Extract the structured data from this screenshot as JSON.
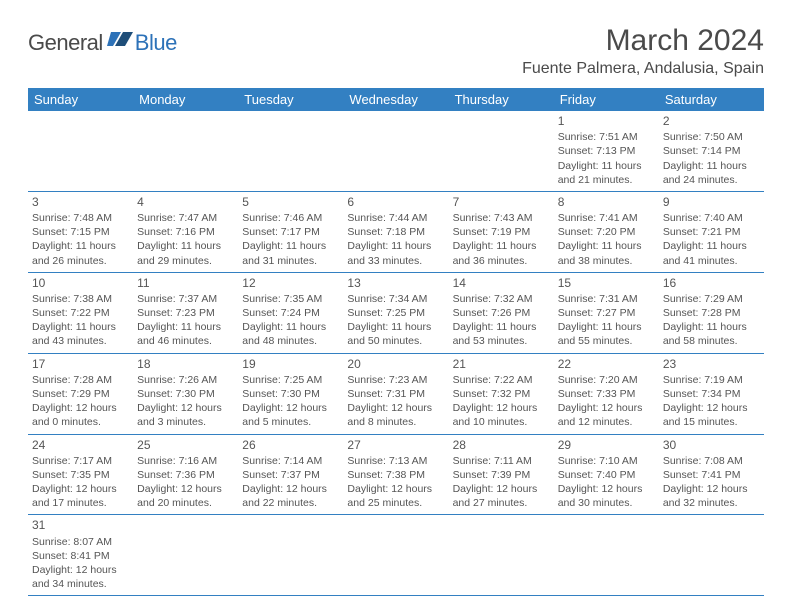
{
  "logo": {
    "part1": "General",
    "part2": "Blue"
  },
  "title": "March 2024",
  "location": "Fuente Palmera, Andalusia, Spain",
  "colors": {
    "headerBlue": "#3380c2",
    "text": "#555555",
    "titleText": "#4a4a4a",
    "logoBlue": "#2d72b8",
    "background": "#ffffff"
  },
  "weekdays": [
    "Sunday",
    "Monday",
    "Tuesday",
    "Wednesday",
    "Thursday",
    "Friday",
    "Saturday"
  ],
  "weeks": [
    [
      null,
      null,
      null,
      null,
      null,
      {
        "n": "1",
        "sr": "Sunrise: 7:51 AM",
        "ss": "Sunset: 7:13 PM",
        "d1": "Daylight: 11 hours",
        "d2": "and 21 minutes."
      },
      {
        "n": "2",
        "sr": "Sunrise: 7:50 AM",
        "ss": "Sunset: 7:14 PM",
        "d1": "Daylight: 11 hours",
        "d2": "and 24 minutes."
      }
    ],
    [
      {
        "n": "3",
        "sr": "Sunrise: 7:48 AM",
        "ss": "Sunset: 7:15 PM",
        "d1": "Daylight: 11 hours",
        "d2": "and 26 minutes."
      },
      {
        "n": "4",
        "sr": "Sunrise: 7:47 AM",
        "ss": "Sunset: 7:16 PM",
        "d1": "Daylight: 11 hours",
        "d2": "and 29 minutes."
      },
      {
        "n": "5",
        "sr": "Sunrise: 7:46 AM",
        "ss": "Sunset: 7:17 PM",
        "d1": "Daylight: 11 hours",
        "d2": "and 31 minutes."
      },
      {
        "n": "6",
        "sr": "Sunrise: 7:44 AM",
        "ss": "Sunset: 7:18 PM",
        "d1": "Daylight: 11 hours",
        "d2": "and 33 minutes."
      },
      {
        "n": "7",
        "sr": "Sunrise: 7:43 AM",
        "ss": "Sunset: 7:19 PM",
        "d1": "Daylight: 11 hours",
        "d2": "and 36 minutes."
      },
      {
        "n": "8",
        "sr": "Sunrise: 7:41 AM",
        "ss": "Sunset: 7:20 PM",
        "d1": "Daylight: 11 hours",
        "d2": "and 38 minutes."
      },
      {
        "n": "9",
        "sr": "Sunrise: 7:40 AM",
        "ss": "Sunset: 7:21 PM",
        "d1": "Daylight: 11 hours",
        "d2": "and 41 minutes."
      }
    ],
    [
      {
        "n": "10",
        "sr": "Sunrise: 7:38 AM",
        "ss": "Sunset: 7:22 PM",
        "d1": "Daylight: 11 hours",
        "d2": "and 43 minutes."
      },
      {
        "n": "11",
        "sr": "Sunrise: 7:37 AM",
        "ss": "Sunset: 7:23 PM",
        "d1": "Daylight: 11 hours",
        "d2": "and 46 minutes."
      },
      {
        "n": "12",
        "sr": "Sunrise: 7:35 AM",
        "ss": "Sunset: 7:24 PM",
        "d1": "Daylight: 11 hours",
        "d2": "and 48 minutes."
      },
      {
        "n": "13",
        "sr": "Sunrise: 7:34 AM",
        "ss": "Sunset: 7:25 PM",
        "d1": "Daylight: 11 hours",
        "d2": "and 50 minutes."
      },
      {
        "n": "14",
        "sr": "Sunrise: 7:32 AM",
        "ss": "Sunset: 7:26 PM",
        "d1": "Daylight: 11 hours",
        "d2": "and 53 minutes."
      },
      {
        "n": "15",
        "sr": "Sunrise: 7:31 AM",
        "ss": "Sunset: 7:27 PM",
        "d1": "Daylight: 11 hours",
        "d2": "and 55 minutes."
      },
      {
        "n": "16",
        "sr": "Sunrise: 7:29 AM",
        "ss": "Sunset: 7:28 PM",
        "d1": "Daylight: 11 hours",
        "d2": "and 58 minutes."
      }
    ],
    [
      {
        "n": "17",
        "sr": "Sunrise: 7:28 AM",
        "ss": "Sunset: 7:29 PM",
        "d1": "Daylight: 12 hours",
        "d2": "and 0 minutes."
      },
      {
        "n": "18",
        "sr": "Sunrise: 7:26 AM",
        "ss": "Sunset: 7:30 PM",
        "d1": "Daylight: 12 hours",
        "d2": "and 3 minutes."
      },
      {
        "n": "19",
        "sr": "Sunrise: 7:25 AM",
        "ss": "Sunset: 7:30 PM",
        "d1": "Daylight: 12 hours",
        "d2": "and 5 minutes."
      },
      {
        "n": "20",
        "sr": "Sunrise: 7:23 AM",
        "ss": "Sunset: 7:31 PM",
        "d1": "Daylight: 12 hours",
        "d2": "and 8 minutes."
      },
      {
        "n": "21",
        "sr": "Sunrise: 7:22 AM",
        "ss": "Sunset: 7:32 PM",
        "d1": "Daylight: 12 hours",
        "d2": "and 10 minutes."
      },
      {
        "n": "22",
        "sr": "Sunrise: 7:20 AM",
        "ss": "Sunset: 7:33 PM",
        "d1": "Daylight: 12 hours",
        "d2": "and 12 minutes."
      },
      {
        "n": "23",
        "sr": "Sunrise: 7:19 AM",
        "ss": "Sunset: 7:34 PM",
        "d1": "Daylight: 12 hours",
        "d2": "and 15 minutes."
      }
    ],
    [
      {
        "n": "24",
        "sr": "Sunrise: 7:17 AM",
        "ss": "Sunset: 7:35 PM",
        "d1": "Daylight: 12 hours",
        "d2": "and 17 minutes."
      },
      {
        "n": "25",
        "sr": "Sunrise: 7:16 AM",
        "ss": "Sunset: 7:36 PM",
        "d1": "Daylight: 12 hours",
        "d2": "and 20 minutes."
      },
      {
        "n": "26",
        "sr": "Sunrise: 7:14 AM",
        "ss": "Sunset: 7:37 PM",
        "d1": "Daylight: 12 hours",
        "d2": "and 22 minutes."
      },
      {
        "n": "27",
        "sr": "Sunrise: 7:13 AM",
        "ss": "Sunset: 7:38 PM",
        "d1": "Daylight: 12 hours",
        "d2": "and 25 minutes."
      },
      {
        "n": "28",
        "sr": "Sunrise: 7:11 AM",
        "ss": "Sunset: 7:39 PM",
        "d1": "Daylight: 12 hours",
        "d2": "and 27 minutes."
      },
      {
        "n": "29",
        "sr": "Sunrise: 7:10 AM",
        "ss": "Sunset: 7:40 PM",
        "d1": "Daylight: 12 hours",
        "d2": "and 30 minutes."
      },
      {
        "n": "30",
        "sr": "Sunrise: 7:08 AM",
        "ss": "Sunset: 7:41 PM",
        "d1": "Daylight: 12 hours",
        "d2": "and 32 minutes."
      }
    ],
    [
      {
        "n": "31",
        "sr": "Sunrise: 8:07 AM",
        "ss": "Sunset: 8:41 PM",
        "d1": "Daylight: 12 hours",
        "d2": "and 34 minutes."
      },
      null,
      null,
      null,
      null,
      null,
      null
    ]
  ]
}
